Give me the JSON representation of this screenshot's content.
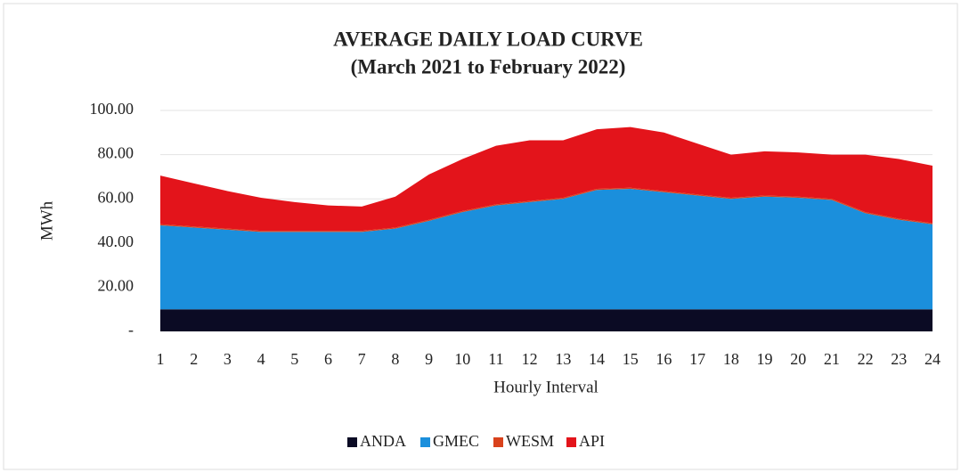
{
  "chart_data": {
    "type": "stacked_area",
    "title": "AVERAGE DAILY LOAD CURVE",
    "subtitle": "(March 2021 to February 2022)",
    "x_label": "Hourly Interval",
    "y_label": "MWh",
    "categories": [
      "1",
      "2",
      "3",
      "4",
      "5",
      "6",
      "7",
      "8",
      "9",
      "10",
      "11",
      "12",
      "13",
      "14",
      "15",
      "16",
      "17",
      "18",
      "19",
      "20",
      "21",
      "22",
      "23",
      "24"
    ],
    "series": [
      {
        "name": "ANDA",
        "color": "#0b0b24",
        "values": [
          10,
          10,
          10,
          10,
          10,
          10,
          10,
          10,
          10,
          10,
          10,
          10,
          10,
          10,
          10,
          10,
          10,
          10,
          10,
          10,
          10,
          10,
          10,
          10
        ]
      },
      {
        "name": "GMEC",
        "color": "#1b8fdc",
        "values": [
          38,
          37,
          36,
          35,
          35,
          35,
          35,
          36.5,
          40,
          44,
          47,
          48.5,
          50,
          54,
          54.5,
          53,
          51.5,
          50,
          51,
          50.5,
          49.5,
          43.5,
          40.5,
          38.5
        ]
      },
      {
        "name": "WESM",
        "color": "#d9421c",
        "values": [
          0.5,
          0.5,
          0.5,
          0.5,
          0.5,
          0.5,
          0.5,
          0.5,
          0.5,
          0.5,
          0.5,
          0.5,
          0.5,
          0.5,
          0.5,
          0.5,
          0.5,
          0.5,
          0.5,
          0.5,
          0.5,
          0.5,
          0.5,
          0.5
        ]
      },
      {
        "name": "API",
        "color": "#e3141b",
        "values": [
          22,
          19.5,
          17,
          15,
          13,
          11.5,
          11,
          14,
          20.5,
          23.5,
          26.5,
          27.5,
          26,
          27,
          27.5,
          26.5,
          23,
          19.5,
          20,
          20,
          20,
          26,
          27,
          26
        ]
      }
    ],
    "ylim": [
      0,
      100
    ],
    "yticks": [
      {
        "value": 0,
        "label": "-"
      },
      {
        "value": 20,
        "label": "20.00"
      },
      {
        "value": 40,
        "label": "40.00"
      },
      {
        "value": 60,
        "label": "60.00"
      },
      {
        "value": 80,
        "label": "80.00"
      },
      {
        "value": 100,
        "label": "100.00"
      }
    ],
    "grid": true,
    "legend": "bottom"
  }
}
